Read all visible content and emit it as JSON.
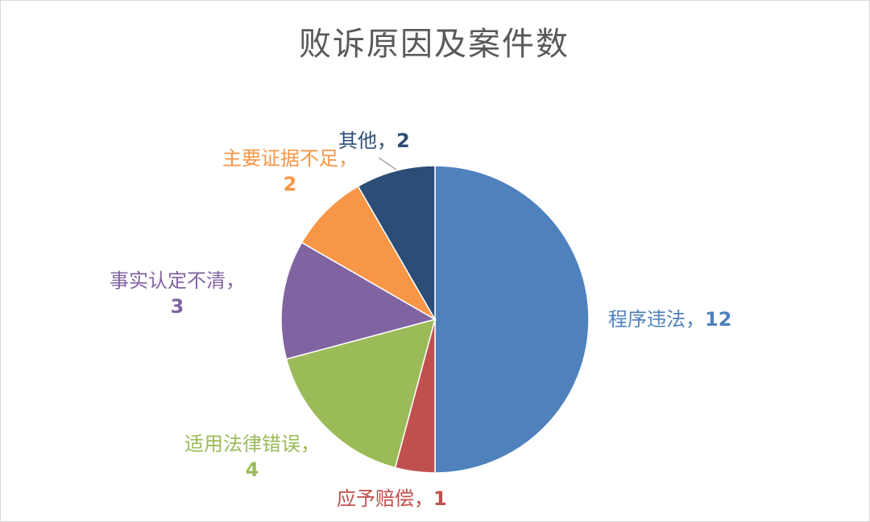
{
  "chart_data": {
    "type": "pie",
    "title": "败诉原因及案件数",
    "categories": [
      "程序违法",
      "应予赔偿",
      "适用法律错误",
      "事实认定不清",
      "主要证据不足",
      "其他"
    ],
    "values": [
      12,
      1,
      4,
      3,
      2,
      2
    ],
    "colors": [
      "#4f81bd",
      "#c0504d",
      "#9bbb59",
      "#8064a2",
      "#f79646",
      "#2c4d75"
    ],
    "data_labels": [
      {
        "name": "程序违法",
        "sep": "，",
        "value": "12"
      },
      {
        "name": "应予赔偿",
        "sep": "，",
        "value": "1"
      },
      {
        "name": "适用法律错误",
        "sep": "，",
        "value": "4"
      },
      {
        "name": "事实认定不清",
        "sep": "，",
        "value": "3"
      },
      {
        "name": "主要证据不足",
        "sep": "，",
        "value": "2"
      },
      {
        "name": "其他",
        "sep": "，",
        "value": "2"
      }
    ],
    "start_angle_deg": 0,
    "direction": "clockwise",
    "legend": "none"
  }
}
